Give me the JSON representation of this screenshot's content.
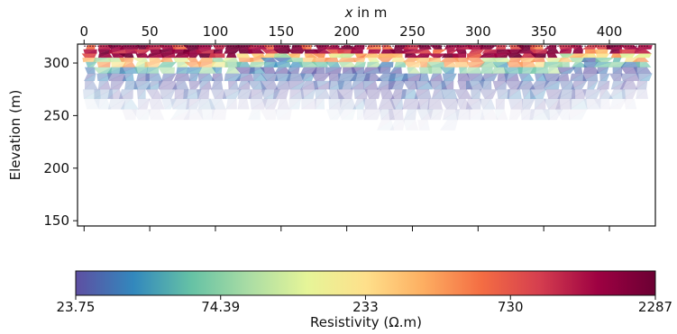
{
  "chart_data": {
    "type": "heatmap",
    "title": "",
    "xlabel_var": "x",
    "xlabel_rest": " in m",
    "ylabel": "Elevation (m)",
    "x_ticks": [
      0,
      50,
      100,
      150,
      200,
      250,
      300,
      350,
      400
    ],
    "x_tick_labels": [
      "0",
      "50",
      "100",
      "150",
      "200",
      "250",
      "300",
      "350",
      "400"
    ],
    "y_ticks": [
      150,
      200,
      250,
      300
    ],
    "y_tick_labels": [
      "150",
      "200",
      "250",
      "300"
    ],
    "xlim": [
      -5,
      435
    ],
    "ylim": [
      145,
      318
    ],
    "grid": false,
    "colorbar": {
      "label": "Resistivity (Ω.m)",
      "ticks": [
        23.75,
        74.39,
        233,
        730,
        2287
      ],
      "tick_labels": [
        "23.75",
        "74.39",
        "233",
        "730",
        "2287"
      ],
      "scale": "log",
      "colormap": "Spectral_r",
      "stops": [
        "#5e4fa2",
        "#3288bd",
        "#66c2a5",
        "#abdda4",
        "#e6f598",
        "#fee08b",
        "#fdae61",
        "#f46d43",
        "#d53e4f",
        "#9e0142",
        "#6b0033"
      ]
    },
    "depth_of_investigation_x": [
      0,
      20,
      40,
      60,
      80,
      100,
      120,
      140,
      160,
      180,
      200,
      220,
      240,
      260,
      270,
      280,
      300,
      320,
      340,
      360,
      380,
      400,
      420,
      430
    ],
    "depth_of_investigation_y": [
      270,
      262,
      258,
      262,
      258,
      260,
      262,
      258,
      262,
      262,
      258,
      252,
      246,
      250,
      252,
      250,
      256,
      258,
      252,
      254,
      262,
      266,
      270,
      274
    ],
    "surface_elevation": 317,
    "layers": [
      {
        "top": 317,
        "bottom": 303,
        "resistivity": 1400
      },
      {
        "top": 303,
        "bottom": 295,
        "resistivity": 130
      },
      {
        "top": 295,
        "bottom": 255,
        "resistivity": 25
      }
    ]
  }
}
